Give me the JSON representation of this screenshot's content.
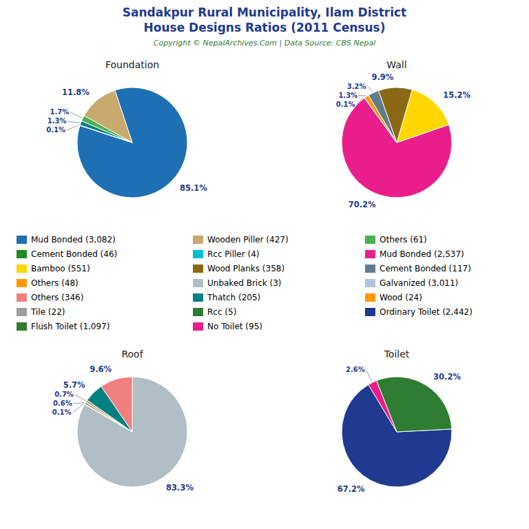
{
  "title": "Sandakpur Rural Municipality, Ilam District",
  "subtitle": "House Designs Ratios (2011 Census)",
  "annotations": [
    "Copyright © NepalArchives.Com | Data Source: CBS Nepal"
  ],
  "chart_data": [
    {
      "type": "pie",
      "title": "Foundation",
      "values": [
        85.1,
        11.8,
        1.7,
        1.3,
        0.1
      ],
      "value_labels": [
        "85.1%",
        "11.8%",
        "1.7%",
        "1.3%",
        "0.1%"
      ],
      "colors": [
        "#1F6FB5",
        "#C8A96E",
        "#4CAF50",
        "#008080",
        "#228B22"
      ],
      "data_labels": true
    },
    {
      "type": "pie",
      "title": "Wall",
      "values": [
        70.2,
        15.2,
        9.9,
        3.2,
        1.3,
        0.1
      ],
      "value_labels": [
        "70.2%",
        "15.2%",
        "9.9%",
        "3.2%",
        "1.3%",
        "0.1%"
      ],
      "colors": [
        "#E91E8C",
        "#FFD700",
        "#8B6914",
        "#607D8B",
        "#FF9800",
        "#4CAF50"
      ],
      "data_labels": true
    },
    {
      "type": "pie",
      "title": "Roof",
      "values": [
        83.3,
        9.6,
        5.7,
        0.7,
        0.6,
        0.1
      ],
      "value_labels": [
        "83.3%",
        "9.6%",
        "5.7%",
        "0.7%",
        "0.6%",
        "0.1%"
      ],
      "colors": [
        "#B0BEC5",
        "#F08080",
        "#008080",
        "#C8A96E",
        "#9E9E9E",
        "#FF9800"
      ],
      "data_labels": true
    },
    {
      "type": "pie",
      "title": "Toilet",
      "values": [
        67.2,
        30.2,
        2.6
      ],
      "value_labels": [
        "67.2%",
        "30.2%",
        "2.6%"
      ],
      "colors": [
        "#1F3A8F",
        "#2E7D32",
        "#E91E8C"
      ],
      "data_labels": true
    }
  ],
  "legend_columns": [
    [
      {
        "name": "Mud Bonded (3,082)",
        "color": "#1F6FB5"
      },
      {
        "name": "Cement Bonded (46)",
        "color": "#228B22"
      },
      {
        "name": "Bamboo (551)",
        "color": "#FFD700"
      },
      {
        "name": "Others (48)",
        "color": "#FF9800"
      },
      {
        "name": "Others (346)",
        "color": "#F08080"
      },
      {
        "name": "Tile (22)",
        "color": "#9E9E9E"
      },
      {
        "name": "Flush Toilet (1,097)",
        "color": "#2E7D32"
      }
    ],
    [
      {
        "name": "Wooden Piller (427)",
        "color": "#C8A96E"
      },
      {
        "name": "Rcc Piller (4)",
        "color": "#00BCD4"
      },
      {
        "name": "Wood Planks (358)",
        "color": "#8B6914"
      },
      {
        "name": "Unbaked Brick (3)",
        "color": "#B0BEC5"
      },
      {
        "name": "Thatch (205)",
        "color": "#008080"
      },
      {
        "name": "Rcc (5)",
        "color": "#2E7D32"
      },
      {
        "name": "No Toilet (95)",
        "color": "#E91E8C"
      }
    ],
    [
      {
        "name": "Others (61)",
        "color": "#4CAF50"
      },
      {
        "name": "Mud Bonded (2,537)",
        "color": "#E91E8C"
      },
      {
        "name": "Cement Bonded (117)",
        "color": "#607D8B"
      },
      {
        "name": "Galvanized (3,011)",
        "color": "#B0C4DE"
      },
      {
        "name": "Wood (24)",
        "color": "#FF9800"
      },
      {
        "name": "Ordinary Toilet (2,442)",
        "color": "#1F3A8F"
      }
    ]
  ]
}
